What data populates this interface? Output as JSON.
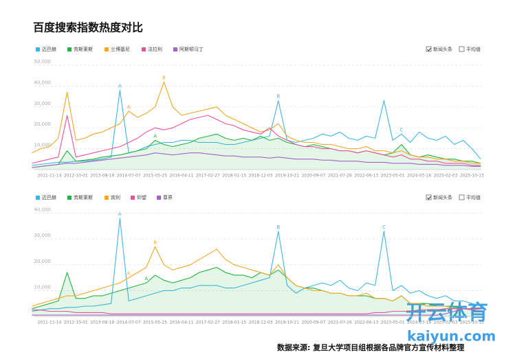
{
  "title": "百度搜索指数热度对比",
  "footer": {
    "source": "数据来源: 复旦大学项目组根据各品牌官方宣传材料整理",
    "watermark": "开云体育",
    "watermark_url": "kaiyun.com"
  },
  "chart_data": [
    {
      "type": "line",
      "options": [
        {
          "label": "新闻头条",
          "checked": true
        },
        {
          "label": "平均值",
          "checked": false
        }
      ],
      "categories": [
        null,
        null,
        "2011-11-14",
        null,
        null,
        "2012-10-01",
        null,
        null,
        "2013-08-19",
        null,
        null,
        "2014-07-07",
        null,
        null,
        "2015-05-25",
        null,
        null,
        "2016-04-11",
        null,
        null,
        "2017-02-27",
        null,
        null,
        "2018-01-15",
        null,
        null,
        "2018-12-03",
        null,
        null,
        "2019-10-21",
        null,
        null,
        "2020-09-07",
        null,
        null,
        "2021-07-26",
        null,
        null,
        "2022-06-13",
        null,
        null,
        "2023-05-01",
        null,
        null,
        "2024-03-18",
        null,
        null,
        "2025-02-03",
        null,
        null,
        "2025-10-13",
        null
      ],
      "ylim": [
        0,
        50000
      ],
      "yticks": [
        {
          "value": 10000,
          "label": "10,000"
        },
        {
          "value": 20000,
          "label": "20,000"
        },
        {
          "value": 30000,
          "label": "30,000"
        },
        {
          "value": 40000,
          "label": "40,000"
        },
        {
          "value": 50000,
          "label": "50,000"
        }
      ],
      "grid": true,
      "series": [
        {
          "name": "迈巴赫",
          "color": "#3cb6e8",
          "values": [
            2000,
            2500,
            3000,
            3500,
            3500,
            4000,
            4000,
            4500,
            5000,
            6000,
            38000,
            8000,
            9000,
            11000,
            12000,
            13000,
            13000,
            14000,
            14000,
            13000,
            13000,
            13000,
            12000,
            12000,
            13000,
            14000,
            15000,
            16000,
            33000,
            14000,
            13000,
            14000,
            15000,
            17000,
            16000,
            18000,
            15000,
            14000,
            16000,
            15000,
            33000,
            14000,
            17000,
            13000,
            18000,
            15000,
            14000,
            16000,
            12000,
            14000,
            10000,
            5000
          ]
        },
        {
          "name": "劳斯莱斯",
          "color": "#22b43c",
          "values": [
            1000,
            1500,
            2000,
            2500,
            9000,
            4000,
            4500,
            5000,
            6000,
            6500,
            7000,
            8000,
            9000,
            10000,
            14000,
            12000,
            11000,
            12000,
            13000,
            15000,
            16000,
            17000,
            15000,
            14000,
            15000,
            14000,
            16000,
            14000,
            15000,
            13000,
            12000,
            11000,
            12000,
            11000,
            10000,
            9000,
            9000,
            8000,
            9000,
            8000,
            7000,
            8000,
            12000,
            7000,
            6000,
            7000,
            6000,
            5000,
            5000,
            4000,
            4000,
            3000
          ]
        },
        {
          "name": "兰博基尼",
          "color": "#f5a623",
          "values": [
            8000,
            10000,
            11000,
            15000,
            37000,
            14000,
            15000,
            17000,
            18000,
            20000,
            22000,
            28000,
            25000,
            27000,
            30000,
            42000,
            30000,
            26000,
            27000,
            28000,
            29000,
            30000,
            26000,
            24000,
            22000,
            20000,
            18000,
            19000,
            22000,
            16000,
            14000,
            13000,
            13000,
            12000,
            12000,
            11000,
            10000,
            10000,
            11000,
            9000,
            9000,
            8000,
            9000,
            7000,
            6000,
            6000,
            5000,
            5000,
            4000,
            4000,
            3000,
            3000
          ]
        },
        {
          "name": "法拉利",
          "color": "#e8529a",
          "values": [
            3000,
            4000,
            5000,
            6000,
            26000,
            6000,
            7000,
            8000,
            9000,
            10000,
            11000,
            13000,
            15000,
            18000,
            20000,
            19000,
            20000,
            22000,
            24000,
            25000,
            26000,
            24000,
            22000,
            21000,
            19000,
            18000,
            17000,
            20000,
            16000,
            14000,
            12000,
            11000,
            11000,
            10000,
            10000,
            9000,
            9000,
            8000,
            9000,
            8000,
            7000,
            6000,
            7000,
            5000,
            5000,
            4000,
            4000,
            3000,
            3000,
            3000,
            2000,
            2000
          ]
        },
        {
          "name": "阿斯顿马丁",
          "color": "#a561c8",
          "values": [
            1000,
            1500,
            2000,
            2500,
            3000,
            3000,
            3500,
            4000,
            4500,
            5000,
            5500,
            6000,
            6500,
            7000,
            8000,
            7500,
            7000,
            7500,
            8000,
            8000,
            7500,
            7000,
            6500,
            6500,
            6000,
            6000,
            6000,
            5500,
            6000,
            5500,
            5000,
            5000,
            5000,
            4500,
            4500,
            4000,
            4000,
            4000,
            3500,
            3500,
            3500,
            3000,
            3000,
            3000,
            2500,
            2500,
            2500,
            2000,
            2000,
            2000,
            1500,
            1500
          ]
        }
      ],
      "annotations": [
        {
          "text": "A",
          "series": 0,
          "point": 10
        },
        {
          "text": "A",
          "series": 2,
          "point": 11
        },
        {
          "text": "B",
          "series": 2,
          "point": 15
        },
        {
          "text": "A",
          "series": 1,
          "point": 14
        },
        {
          "text": "B",
          "series": 0,
          "point": 28
        },
        {
          "text": "C",
          "series": 0,
          "point": 42
        }
      ]
    },
    {
      "type": "line",
      "options": [
        {
          "label": "新闻头条",
          "checked": true
        },
        {
          "label": "平均值",
          "checked": false
        }
      ],
      "categories": [
        null,
        null,
        "2011-11-14",
        null,
        null,
        "2012-10-01",
        null,
        null,
        "2013-08-19",
        null,
        null,
        "2014-07-07",
        null,
        null,
        "2015-05-25",
        null,
        null,
        "2016-04-11",
        null,
        null,
        "2017-02-27",
        null,
        null,
        "2018-01-15",
        null,
        null,
        "2018-12-03",
        null,
        null,
        "2019-10-21",
        null,
        null,
        "2020-09-07",
        null,
        null,
        "2021-07-26",
        null,
        null,
        "2022-06-13",
        null,
        null,
        "2023-05-01",
        null,
        null,
        "2024-03-18",
        null,
        null,
        "2025-02-03",
        null,
        null,
        "2025-10-13",
        null
      ],
      "ylim": [
        0,
        42000
      ],
      "yticks": [
        {
          "value": 10000,
          "label": "10,000"
        },
        {
          "value": 20000,
          "label": "20,000"
        },
        {
          "value": 30000,
          "label": "30,000"
        },
        {
          "value": 40000,
          "label": "40,000"
        }
      ],
      "grid": true,
      "series": [
        {
          "name": "迈巴赫",
          "color": "#3cb6e8",
          "values": [
            2000,
            2500,
            3000,
            3000,
            3500,
            3500,
            4000,
            4000,
            4500,
            5000,
            38000,
            6000,
            7000,
            8000,
            9000,
            10000,
            10000,
            11000,
            11000,
            12000,
            12000,
            12000,
            11000,
            11000,
            12000,
            13000,
            14000,
            15000,
            33000,
            12000,
            9000,
            11000,
            12000,
            13000,
            12000,
            14000,
            11000,
            10000,
            13000,
            12000,
            33000,
            10000,
            12000,
            9000,
            10000,
            8000,
            7000,
            8000,
            6000,
            6000,
            5000,
            4000
          ]
        },
        {
          "name": "劳斯莱斯",
          "color": "#22b43c",
          "values": [
            3000,
            4000,
            5000,
            6000,
            17000,
            7000,
            7000,
            8000,
            8000,
            9000,
            10000,
            11000,
            12000,
            13000,
            16000,
            14000,
            13000,
            14000,
            15000,
            17000,
            18000,
            19000,
            17000,
            16000,
            16000,
            15000,
            17000,
            16000,
            18000,
            15000,
            12000,
            11000,
            11000,
            10000,
            9000,
            9000,
            8000,
            8000,
            8000,
            7000,
            7000,
            6000,
            8000,
            5000,
            5000,
            5000,
            4000,
            4000,
            4000,
            3000,
            3000,
            3000
          ]
        },
        {
          "name": "宾利",
          "color": "#f5a623",
          "values": [
            4000,
            5000,
            6000,
            7000,
            8000,
            8000,
            9000,
            10000,
            11000,
            12000,
            13000,
            15000,
            17000,
            19000,
            27000,
            20000,
            18000,
            19000,
            20000,
            22000,
            24000,
            26000,
            22000,
            20000,
            19000,
            18000,
            17000,
            16000,
            20000,
            15000,
            12000,
            11000,
            10000,
            10000,
            9000,
            9000,
            8000,
            8000,
            9000,
            7000,
            7000,
            6000,
            8000,
            5000,
            5000,
            4000,
            4000,
            4000,
            3000,
            3000,
            3000,
            3000
          ]
        },
        {
          "name": "仰望",
          "color": "#e8529a",
          "values": [
            2500,
            2500,
            2000,
            2000,
            2000,
            1500,
            1500,
            1500,
            1500,
            1000,
            1000,
            1000,
            1000,
            1000,
            1000,
            1000,
            1000,
            1000,
            1000,
            1000,
            1000,
            1000,
            1000,
            1000,
            1000,
            1000,
            1000,
            1000,
            1000,
            1000,
            1000,
            1000,
            1000,
            1000,
            1000,
            1000,
            1000,
            1000,
            1000,
            1500,
            1500,
            2000,
            2000,
            2000,
            2500,
            2500,
            2500,
            3000,
            3000,
            3000,
            3000,
            3000
          ]
        },
        {
          "name": "尊界",
          "color": "#a561c8",
          "values": [
            500,
            500,
            500,
            500,
            500,
            500,
            500,
            500,
            500,
            500,
            500,
            500,
            500,
            500,
            500,
            500,
            500,
            500,
            500,
            500,
            500,
            500,
            500,
            500,
            500,
            500,
            500,
            500,
            500,
            500,
            500,
            500,
            500,
            500,
            500,
            500,
            500,
            500,
            500,
            500,
            500,
            500,
            500,
            500,
            500,
            500,
            500,
            1000,
            2000,
            3000,
            2500,
            2000
          ]
        }
      ],
      "annotations": [
        {
          "text": "A",
          "series": 0,
          "point": 10
        },
        {
          "text": "A",
          "series": 2,
          "point": 11
        },
        {
          "text": "B",
          "series": 2,
          "point": 14
        },
        {
          "text": "A",
          "series": 1,
          "point": 13
        },
        {
          "text": "B",
          "series": 0,
          "point": 28
        },
        {
          "text": "C",
          "series": 0,
          "point": 40
        }
      ]
    }
  ]
}
